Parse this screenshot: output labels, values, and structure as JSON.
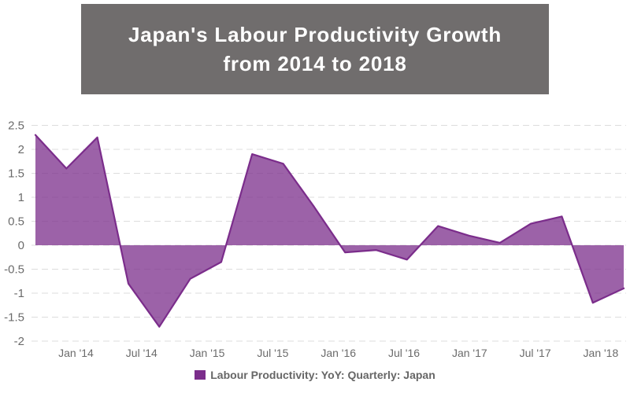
{
  "banner": {
    "line1": "Japan's Labour Productivity Growth",
    "line2": "from 2014 to 2018",
    "bg_color": "#706D6D",
    "text_color": "#FFFFFF"
  },
  "legend": {
    "label": "Labour Productivity: YoY: Quarterly: Japan",
    "swatch_color": "#7B2D8B",
    "text_color": "#666666"
  },
  "axes": {
    "label_color": "#6B6B6B"
  },
  "chart_data": {
    "type": "area",
    "title": "Japan's Labour Productivity Growth from 2014 to 2018",
    "categories": [
      "2013 Q3",
      "2013 Q4",
      "2014 Q1",
      "2014 Q2",
      "2014 Q3",
      "2014 Q4",
      "2015 Q1",
      "2015 Q2",
      "2015 Q3",
      "2015 Q4",
      "2016 Q1",
      "2016 Q2",
      "2016 Q3",
      "2016 Q4",
      "2017 Q1",
      "2017 Q2",
      "2017 Q3",
      "2017 Q4",
      "2018 Q1",
      "2018 Q2"
    ],
    "series": [
      {
        "name": "Labour Productivity: YoY: Quarterly: Japan",
        "values": [
          2.3,
          1.6,
          2.25,
          -0.8,
          -1.7,
          -0.7,
          -0.35,
          1.9,
          1.7,
          0.8,
          -0.15,
          -0.1,
          -0.3,
          0.4,
          0.2,
          0.05,
          0.45,
          0.6,
          -1.2,
          -0.9
        ],
        "line_color": "#7B2D8B",
        "fill_color": "rgba(123,45,139,0.75)"
      }
    ],
    "x_tick_labels": [
      "Jan '14",
      "Jul '14",
      "Jan '15",
      "Jul '15",
      "Jan '16",
      "Jul '16",
      "Jan '17",
      "Jul '17",
      "Jan '18"
    ],
    "y_ticks": [
      2.5,
      2,
      1.5,
      1,
      0.5,
      0,
      -0.5,
      -1,
      -1.5,
      -2
    ],
    "ylim": [
      -2,
      2.5
    ],
    "threshold": 0,
    "grid": {
      "horizontal": true,
      "style": "dashed",
      "color": "#DDDDDD"
    },
    "legend_position": "bottom-center"
  }
}
